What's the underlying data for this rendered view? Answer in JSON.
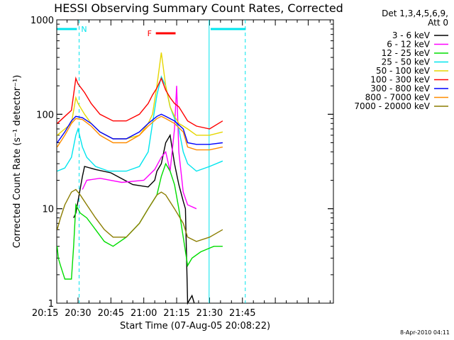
{
  "chart_data": {
    "type": "line",
    "title": "HESSI Observing Summary Count Rates, Corrected",
    "xlabel": "Start Time (07-Aug-05 20:08:22)",
    "ylabel": "Corrected Count Rate (s⁻¹ detector⁻¹)",
    "yscale": "log",
    "ylim": [
      1,
      1000
    ],
    "xlim_minutes": [
      20.3,
      146.5
    ],
    "x_ticks": [
      {
        "min": 15,
        "label": "20:15"
      },
      {
        "min": 30,
        "label": "20:30"
      },
      {
        "min": 45,
        "label": "20:45"
      },
      {
        "min": 60,
        "label": "21:00"
      },
      {
        "min": 75,
        "label": "21:15"
      },
      {
        "min": 90,
        "label": "21:30"
      },
      {
        "min": 105,
        "label": "21:45"
      }
    ],
    "y_ticks": [
      {
        "value": 1,
        "label": "1"
      },
      {
        "value": 10,
        "label": "10"
      },
      {
        "value": 100,
        "label": "100"
      },
      {
        "value": 1000,
        "label": "1000"
      }
    ],
    "grid": false,
    "legend_header": [
      "Det 1,3,4,5,6,9,",
      "Att 0"
    ],
    "legend_position": "right",
    "series": [
      {
        "name": "3 - 6 keV",
        "color": "#000000",
        "points": [
          [
            28,
            8
          ],
          [
            29,
            9
          ],
          [
            32,
            22
          ],
          [
            33,
            28
          ],
          [
            38,
            26
          ],
          [
            45,
            24
          ],
          [
            55,
            18
          ],
          [
            62,
            17
          ],
          [
            65,
            20
          ],
          [
            66,
            25
          ],
          [
            68,
            30
          ],
          [
            70,
            50
          ],
          [
            72,
            60
          ],
          [
            74,
            30
          ],
          [
            76,
            18
          ],
          [
            78,
            12
          ],
          [
            79,
            10
          ],
          [
            80,
            1
          ],
          [
            82,
            1.2
          ],
          [
            83,
            1
          ]
        ]
      },
      {
        "name": "6 - 12 keV",
        "color": "#ff00ff",
        "points": [
          [
            32,
            16
          ],
          [
            34,
            20
          ],
          [
            40,
            21
          ],
          [
            50,
            19
          ],
          [
            60,
            20
          ],
          [
            65,
            26
          ],
          [
            68,
            35
          ],
          [
            70,
            40
          ],
          [
            72,
            25
          ],
          [
            74,
            70
          ],
          [
            75,
            200
          ],
          [
            76,
            40
          ],
          [
            78,
            15
          ],
          [
            80,
            11
          ],
          [
            84,
            10
          ]
        ]
      },
      {
        "name": "12 - 25 keV",
        "color": "#00dd00",
        "points": [
          [
            20.5,
            4
          ],
          [
            21,
            3
          ],
          [
            22,
            2.5
          ],
          [
            24,
            1.8
          ],
          [
            27,
            1.8
          ],
          [
            28,
            4
          ],
          [
            29,
            11
          ],
          [
            31,
            9
          ],
          [
            34,
            8
          ],
          [
            38,
            6
          ],
          [
            42,
            4.5
          ],
          [
            46,
            4
          ],
          [
            52,
            5
          ],
          [
            58,
            7
          ],
          [
            62,
            10
          ],
          [
            66,
            14
          ],
          [
            68,
            22
          ],
          [
            70,
            30
          ],
          [
            72,
            25
          ],
          [
            74,
            18
          ],
          [
            76,
            10
          ],
          [
            78,
            5
          ],
          [
            80,
            2.5
          ],
          [
            82,
            3
          ],
          [
            86,
            3.5
          ],
          [
            92,
            4
          ],
          [
            96,
            4
          ]
        ]
      },
      {
        "name": "25 - 50 keV",
        "color": "#00e5ee",
        "points": [
          [
            20.5,
            25
          ],
          [
            24,
            27
          ],
          [
            27,
            35
          ],
          [
            29,
            60
          ],
          [
            30,
            70
          ],
          [
            32,
            45
          ],
          [
            34,
            35
          ],
          [
            38,
            28
          ],
          [
            44,
            25
          ],
          [
            52,
            25
          ],
          [
            58,
            28
          ],
          [
            62,
            40
          ],
          [
            64,
            80
          ],
          [
            66,
            160
          ],
          [
            68,
            250
          ],
          [
            70,
            200
          ],
          [
            72,
            120
          ],
          [
            74,
            90
          ],
          [
            76,
            70
          ],
          [
            78,
            40
          ],
          [
            80,
            30
          ],
          [
            84,
            25
          ],
          [
            90,
            28
          ],
          [
            96,
            32
          ]
        ]
      },
      {
        "name": "50 - 100 keV",
        "color": "#e6d600",
        "points": [
          [
            20.5,
            60
          ],
          [
            24,
            70
          ],
          [
            27,
            80
          ],
          [
            29,
            150
          ],
          [
            30,
            130
          ],
          [
            33,
            100
          ],
          [
            36,
            80
          ],
          [
            40,
            65
          ],
          [
            46,
            55
          ],
          [
            52,
            55
          ],
          [
            58,
            60
          ],
          [
            62,
            80
          ],
          [
            64,
            100
          ],
          [
            66,
            200
          ],
          [
            68,
            450
          ],
          [
            70,
            200
          ],
          [
            72,
            120
          ],
          [
            74,
            95
          ],
          [
            76,
            80
          ],
          [
            78,
            75
          ],
          [
            80,
            70
          ],
          [
            84,
            60
          ],
          [
            90,
            60
          ],
          [
            96,
            65
          ]
        ]
      },
      {
        "name": "100 - 300 keV",
        "color": "#ff0000",
        "points": [
          [
            20.5,
            80
          ],
          [
            24,
            95
          ],
          [
            27,
            110
          ],
          [
            29,
            240
          ],
          [
            30,
            210
          ],
          [
            33,
            170
          ],
          [
            36,
            130
          ],
          [
            40,
            100
          ],
          [
            46,
            85
          ],
          [
            52,
            85
          ],
          [
            58,
            100
          ],
          [
            62,
            130
          ],
          [
            64,
            160
          ],
          [
            66,
            190
          ],
          [
            68,
            240
          ],
          [
            70,
            180
          ],
          [
            72,
            150
          ],
          [
            74,
            130
          ],
          [
            76,
            120
          ],
          [
            80,
            85
          ],
          [
            84,
            75
          ],
          [
            90,
            70
          ],
          [
            96,
            85
          ]
        ]
      },
      {
        "name": "300 - 800 keV",
        "color": "#0000ff",
        "points": [
          [
            20.5,
            50
          ],
          [
            24,
            65
          ],
          [
            27,
            85
          ],
          [
            29,
            95
          ],
          [
            32,
            92
          ],
          [
            36,
            80
          ],
          [
            40,
            65
          ],
          [
            46,
            55
          ],
          [
            52,
            55
          ],
          [
            58,
            65
          ],
          [
            62,
            80
          ],
          [
            66,
            95
          ],
          [
            68,
            100
          ],
          [
            70,
            95
          ],
          [
            74,
            85
          ],
          [
            78,
            70
          ],
          [
            80,
            50
          ],
          [
            84,
            48
          ],
          [
            90,
            48
          ],
          [
            96,
            50
          ]
        ]
      },
      {
        "name": "800 - 7000 keV",
        "color": "#ff8c00",
        "points": [
          [
            20.5,
            45
          ],
          [
            24,
            60
          ],
          [
            27,
            80
          ],
          [
            29,
            90
          ],
          [
            32,
            88
          ],
          [
            36,
            75
          ],
          [
            40,
            60
          ],
          [
            46,
            50
          ],
          [
            52,
            50
          ],
          [
            58,
            60
          ],
          [
            62,
            75
          ],
          [
            66,
            90
          ],
          [
            68,
            95
          ],
          [
            70,
            90
          ],
          [
            74,
            80
          ],
          [
            78,
            65
          ],
          [
            80,
            45
          ],
          [
            84,
            42
          ],
          [
            90,
            42
          ],
          [
            96,
            45
          ]
        ]
      },
      {
        "name": "7000 - 20000 keV",
        "color": "#8b7d00",
        "points": [
          [
            20.5,
            6
          ],
          [
            22,
            8
          ],
          [
            24,
            11
          ],
          [
            27,
            15
          ],
          [
            29,
            16
          ],
          [
            31,
            14
          ],
          [
            34,
            11
          ],
          [
            38,
            8
          ],
          [
            42,
            6
          ],
          [
            46,
            5
          ],
          [
            52,
            5
          ],
          [
            58,
            7
          ],
          [
            62,
            10
          ],
          [
            66,
            14
          ],
          [
            68,
            15
          ],
          [
            70,
            14
          ],
          [
            74,
            10
          ],
          [
            78,
            7
          ],
          [
            80,
            5
          ],
          [
            84,
            4.5
          ],
          [
            90,
            5
          ],
          [
            96,
            6
          ]
        ]
      }
    ],
    "annotations": [
      {
        "label": "N",
        "color": "#00e5ee",
        "bar": [
          20.5,
          29.5
        ]
      },
      {
        "label": "",
        "color": "#00e5ee",
        "bar": [
          90.5,
          106.5
        ]
      },
      {
        "label": "F",
        "color": "#ff0000",
        "bar": [
          65.5,
          74.5
        ]
      }
    ],
    "vertical_markers": [
      {
        "min": 30.5,
        "style": "dashed",
        "color": "#00e5ee"
      },
      {
        "min": 89.8,
        "style": "solid",
        "color": "#00e5ee"
      },
      {
        "min": 106.3,
        "style": "dashed",
        "color": "#00e5ee"
      }
    ],
    "footer": "8-Apr-2010 04:11"
  }
}
